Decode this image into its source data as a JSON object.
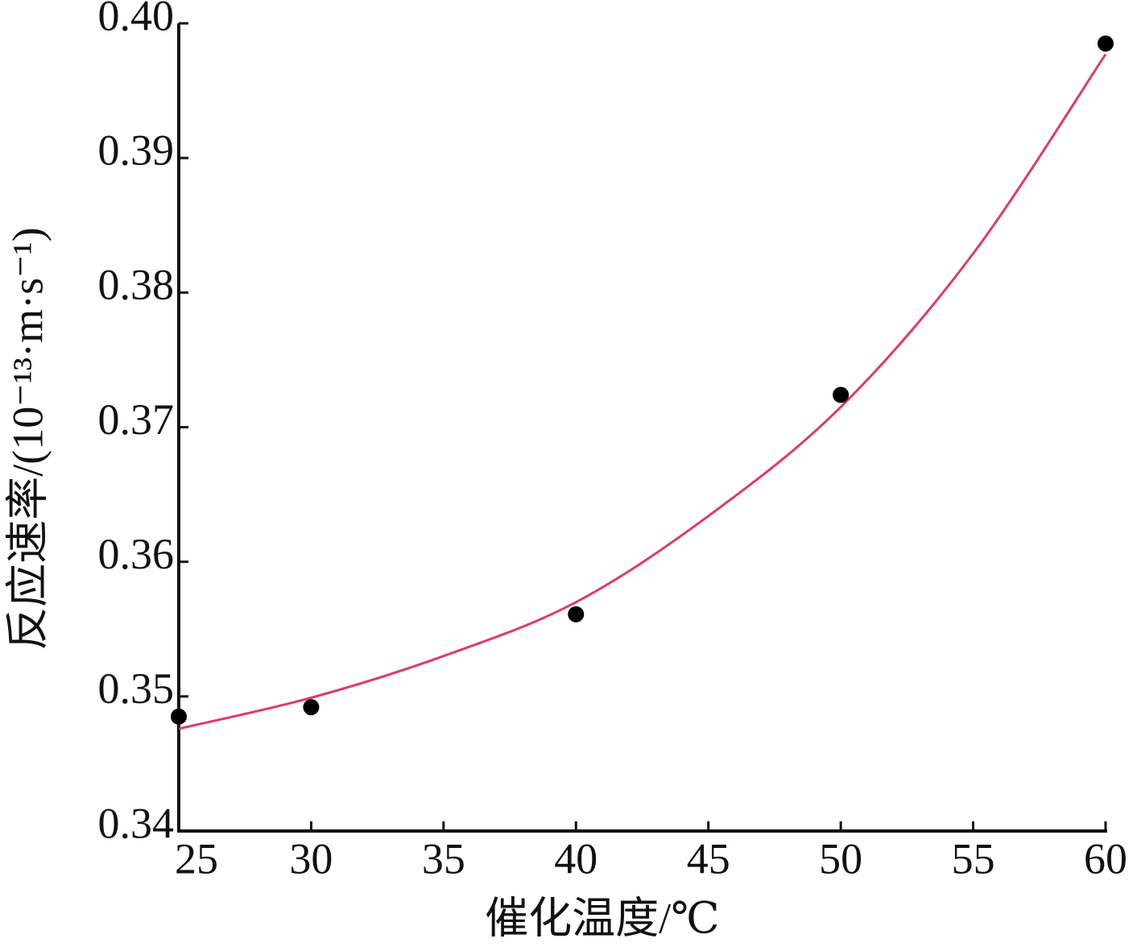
{
  "chart_data": {
    "type": "scatter",
    "xlabel": "催化温度/℃",
    "ylabel": "反应速率/(10⁻¹³·m·s⁻¹)",
    "xlim": [
      25,
      60
    ],
    "xticks": [
      25,
      30,
      35,
      40,
      45,
      50,
      55,
      60
    ],
    "ylim": [
      0.34,
      0.4
    ],
    "yticks": [
      0.34,
      0.35,
      0.36,
      0.37,
      0.38,
      0.39,
      {
        "value": 0.4,
        "label": "0.40"
      }
    ],
    "series": [
      {
        "color": "#000000",
        "x": [
          25,
          30,
          40,
          50,
          60
        ],
        "values": [
          0.3485,
          0.3492,
          0.3561,
          0.3724,
          0.3985
        ]
      },
      {
        "color": "#e03a68",
        "x": [
          25,
          30,
          35,
          40,
          45,
          50,
          55,
          60
        ],
        "values": [
          0.3476,
          0.3499,
          0.353,
          0.357,
          0.3634,
          0.3715,
          0.3829,
          0.3977
        ]
      }
    ]
  }
}
